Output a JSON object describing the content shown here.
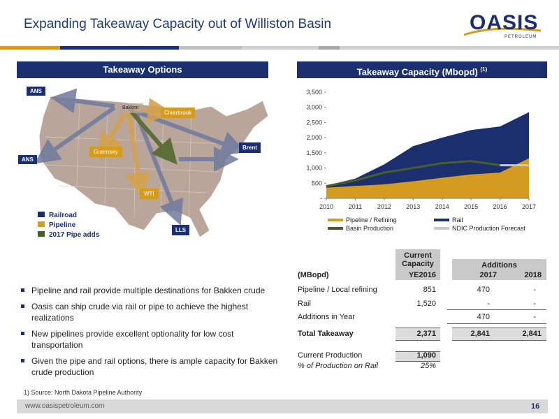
{
  "title": "Expanding Takeaway Capacity out of Williston Basin",
  "logo": {
    "word": "OASIS",
    "sub": "PETROLEUM"
  },
  "colors": {
    "navy": "#1b2f6e",
    "gold": "#d39b1f",
    "green": "#4a5e2c",
    "gray": "#bdbdbd"
  },
  "left_panel": {
    "heading": "Takeaway Options",
    "map": {
      "labels": {
        "ans_north": "ANS",
        "ans_west": "ANS",
        "bakken": "Bakken",
        "clearbrook": "Clearbrook",
        "guernsey": "Guernsey",
        "brent": "Brent",
        "wti": "WTI",
        "lls": "LLS"
      },
      "legend": [
        "Railroad",
        "Pipeline",
        "2017 Pipe adds"
      ]
    }
  },
  "right_panel": {
    "heading": "Takeaway Capacity (Mbopd)",
    "heading_note": "(1)"
  },
  "chart_data": {
    "type": "area",
    "x": [
      2010,
      2011,
      2012,
      2013,
      2014,
      2015,
      2016,
      2017
    ],
    "ylim": [
      0,
      3500
    ],
    "yticks": [
      "-",
      "500",
      "1,000",
      "1,500",
      "2,000",
      "2,500",
      "3,000",
      "3,500"
    ],
    "series": [
      {
        "name": "Pipeline / Refining",
        "kind": "area",
        "color": "#d39b1f",
        "values": [
          350,
          410,
          460,
          560,
          680,
          790,
          850,
          1320
        ]
      },
      {
        "name": "Rail",
        "kind": "area-top",
        "color": "#1b2f6e",
        "values": [
          420,
          650,
          1120,
          1720,
          2000,
          2250,
          2370,
          2840
        ]
      },
      {
        "name": "Basin Production",
        "kind": "line",
        "color": "#4a5e2c",
        "values": [
          400,
          590,
          850,
          1000,
          1160,
          1230,
          1090,
          null
        ]
      },
      {
        "name": "NDIC Production Forecast",
        "kind": "line",
        "color": "#c8c8c8",
        "values": [
          null,
          null,
          null,
          null,
          null,
          null,
          1090,
          1090
        ]
      }
    ],
    "legend": [
      "Pipeline / Refining",
      "Rail",
      "Basin Production",
      "NDIC Production Forecast"
    ]
  },
  "table": {
    "group_current": "Current Capacity",
    "group_additions": "Additions",
    "headers": [
      "(MBopd)",
      "YE2016",
      "2017",
      "2018"
    ],
    "rows": [
      {
        "label": "Pipeline / Local refining",
        "c": "851",
        "a": "470",
        "b": "-"
      },
      {
        "label": "Rail",
        "c": "1,520",
        "a": "-",
        "b": "-"
      },
      {
        "label": "Additions in Year",
        "c": "",
        "a": "470",
        "b": "-"
      }
    ],
    "total": {
      "label": "Total Takeaway",
      "c": "2,371",
      "a": "2,841",
      "b": "2,841"
    },
    "production": {
      "label": "Current Production",
      "c": "1,090"
    },
    "rail_pct": {
      "label": "% of Production on Rail",
      "c": "25%"
    }
  },
  "bullets": [
    "Pipeline and rail provide multiple destinations for Bakken crude",
    "Oasis can ship crude via rail or pipe to achieve the highest realizations",
    "New pipelines provide excellent optionality for low cost transportation",
    "Given the pipe and rail options, there is ample capacity for Bakken crude production"
  ],
  "footnote": "1)    Source: North Dakota Pipeline Authority",
  "footer": {
    "url": "www.oasispetroleum.com",
    "page": "16"
  }
}
